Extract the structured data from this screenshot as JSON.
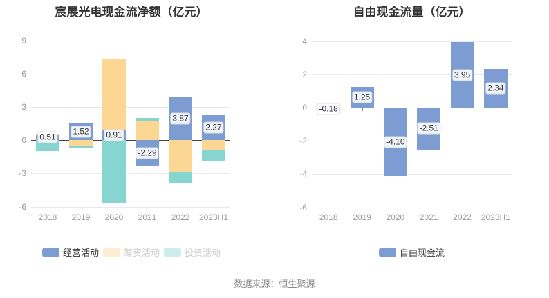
{
  "page": {
    "background": "#ffffff",
    "source_note": "数据来源：恒生聚源"
  },
  "palette": {
    "blue": "#7D9CD1",
    "orange": "#FBD793",
    "teal": "#86D5D1",
    "grid_line": "#E4E9F3",
    "axis_line": "#444444",
    "tick_label": "#999999",
    "title_text": "#333333",
    "dimmed_legend_text": "#cccccc",
    "source_text": "#888888"
  },
  "chart_data": [
    {
      "type": "bar",
      "stacked": true,
      "title": "宸展光电现金流净额（亿元）",
      "categories": [
        "2018",
        "2019",
        "2020",
        "2021",
        "2022",
        "2023H1"
      ],
      "series": [
        {
          "name": "经营活动",
          "color": "#7D9CD1",
          "values": [
            0.51,
            1.52,
            0.91,
            -2.29,
            3.87,
            2.27
          ]
        },
        {
          "name": "筹资活动",
          "color": "#FBD793",
          "values": [
            0.1,
            -0.45,
            6.42,
            1.72,
            -2.9,
            -0.85
          ]
        },
        {
          "name": "投资活动",
          "color": "#86D5D1",
          "values": [
            -0.95,
            -0.2,
            -5.75,
            0.3,
            -0.95,
            -1.0
          ]
        }
      ],
      "data_labels": [
        "0.51",
        "1.52",
        "0.91",
        "-2.29",
        "3.87",
        "2.27"
      ],
      "labeled_series": 0,
      "ylim": [
        -6,
        9
      ],
      "yticks": [
        9,
        6,
        3,
        0,
        -3,
        -6
      ],
      "grid": true,
      "legend_position": "bottom",
      "legend": [
        {
          "label": "经营活动",
          "dimmed": false
        },
        {
          "label": "筹资活动",
          "dimmed": true
        },
        {
          "label": "投资活动",
          "dimmed": true
        }
      ]
    },
    {
      "type": "bar",
      "stacked": false,
      "title": "自由现金流量（亿元）",
      "categories": [
        "2018",
        "2019",
        "2020",
        "2021",
        "2022",
        "2023H1"
      ],
      "series": [
        {
          "name": "自由现金流",
          "color": "#7D9CD1",
          "values": [
            -0.18,
            1.25,
            -4.1,
            -2.51,
            3.95,
            2.34
          ]
        }
      ],
      "data_labels": [
        "-0.18",
        "1.25",
        "-4.10",
        "-2.51",
        "3.95",
        "2.34"
      ],
      "labeled_series": 0,
      "ylim": [
        -6,
        4
      ],
      "yticks": [
        4,
        2,
        0,
        -2,
        -4,
        -6
      ],
      "grid": true,
      "legend_position": "bottom",
      "legend": [
        {
          "label": "自由现金流",
          "dimmed": false
        }
      ]
    }
  ]
}
